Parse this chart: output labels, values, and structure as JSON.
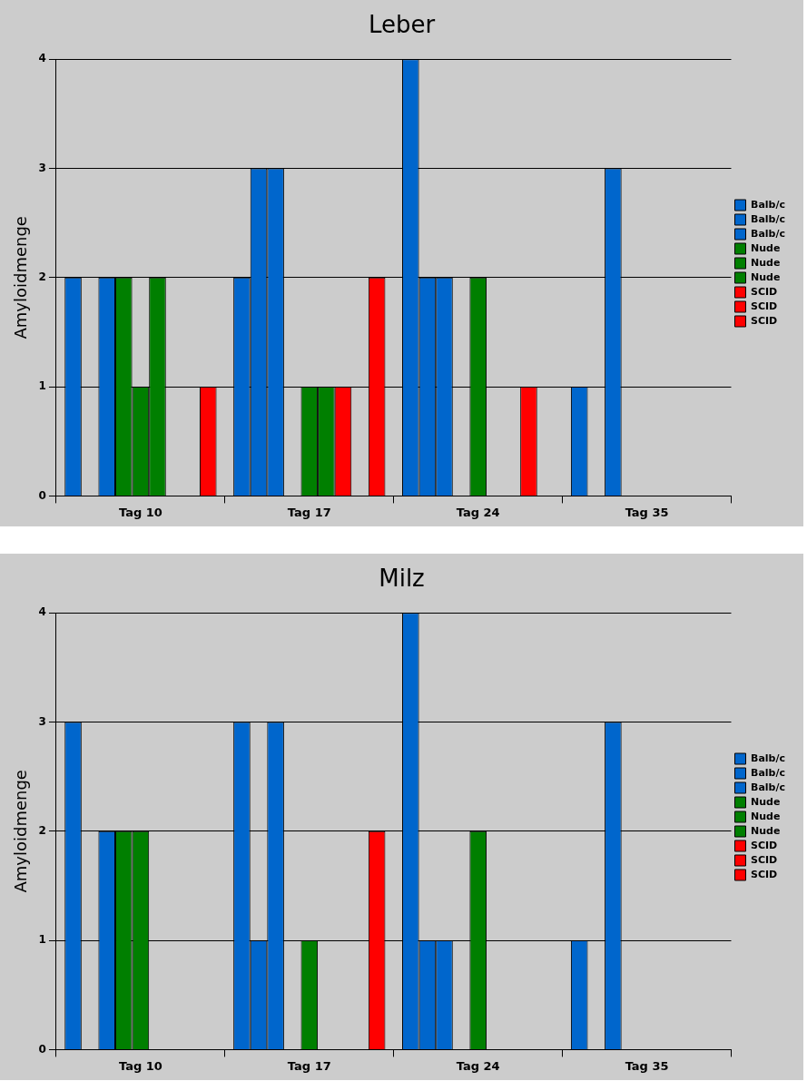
{
  "chart_data": [
    {
      "type": "bar",
      "title": "Leber",
      "ylabel": "Amyloidmenge",
      "categories": [
        "Tag 10",
        "Tag 17",
        "Tag 24",
        "Tag 35"
      ],
      "ylim": [
        0,
        4
      ],
      "yticks": [
        0,
        1,
        2,
        3,
        4
      ],
      "grid": "y",
      "legend": "right",
      "series": [
        {
          "name": "Balb/c",
          "color": "#0066cc",
          "values": [
            2,
            2,
            4,
            1
          ]
        },
        {
          "name": "Balb/c",
          "color": "#0066cc",
          "values": [
            0,
            3,
            2,
            0
          ]
        },
        {
          "name": "Balb/c",
          "color": "#0066cc",
          "values": [
            2,
            3,
            2,
            3
          ]
        },
        {
          "name": "Nude",
          "color": "#007f00",
          "values": [
            2,
            0,
            0,
            0
          ]
        },
        {
          "name": "Nude",
          "color": "#007f00",
          "values": [
            1,
            1,
            2,
            0
          ]
        },
        {
          "name": "Nude",
          "color": "#007f00",
          "values": [
            2,
            1,
            0,
            0
          ]
        },
        {
          "name": "SCID",
          "color": "#ff0000",
          "values": [
            0,
            1,
            0,
            0
          ]
        },
        {
          "name": "SCID",
          "color": "#ff0000",
          "values": [
            0,
            0,
            1,
            0
          ]
        },
        {
          "name": "SCID",
          "color": "#ff0000",
          "values": [
            1,
            2,
            0,
            0
          ]
        }
      ]
    },
    {
      "type": "bar",
      "title": "Milz",
      "ylabel": "Amyloidmenge",
      "categories": [
        "Tag 10",
        "Tag 17",
        "Tag 24",
        "Tag 35"
      ],
      "ylim": [
        0,
        4
      ],
      "yticks": [
        0,
        1,
        2,
        3,
        4
      ],
      "grid": "y",
      "legend": "right",
      "series": [
        {
          "name": "Balb/c",
          "color": "#0066cc",
          "values": [
            3,
            3,
            4,
            1
          ]
        },
        {
          "name": "Balb/c",
          "color": "#0066cc",
          "values": [
            0,
            1,
            1,
            0
          ]
        },
        {
          "name": "Balb/c",
          "color": "#0066cc",
          "values": [
            2,
            3,
            1,
            3
          ]
        },
        {
          "name": "Nude",
          "color": "#007f00",
          "values": [
            2,
            0,
            0,
            0
          ]
        },
        {
          "name": "Nude",
          "color": "#007f00",
          "values": [
            2,
            1,
            2,
            0
          ]
        },
        {
          "name": "Nude",
          "color": "#007f00",
          "values": [
            0,
            0,
            0,
            0
          ]
        },
        {
          "name": "SCID",
          "color": "#ff0000",
          "values": [
            0,
            0,
            0,
            0
          ]
        },
        {
          "name": "SCID",
          "color": "#ff0000",
          "values": [
            0,
            0,
            0,
            0
          ]
        },
        {
          "name": "SCID",
          "color": "#ff0000",
          "values": [
            0,
            2,
            0,
            0
          ]
        }
      ]
    }
  ]
}
